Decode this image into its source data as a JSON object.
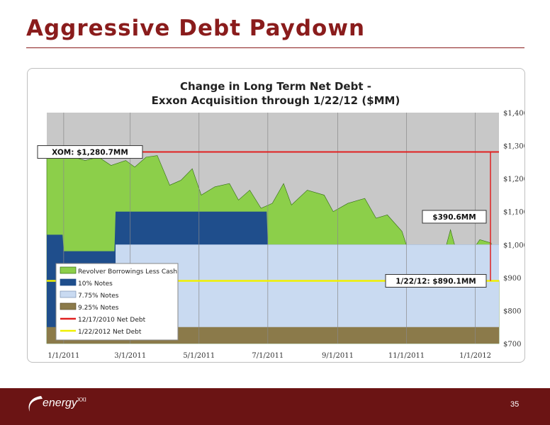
{
  "slide": {
    "title": "Aggressive Debt Paydown",
    "page_number": "35",
    "logo_text": "energy",
    "logo_sup": "XXI"
  },
  "colors": {
    "title": "#8a1c1c",
    "footer": "#6b1414",
    "revolver": "#8ccf4a",
    "notes10": "#1f4e8c",
    "notes775": "#c9daf1",
    "notes925": "#8b7a4a",
    "net_debt_2010": "#e02020",
    "net_debt_2012": "#f0f000",
    "plot_bg": "#c8c8c8"
  },
  "chart_data": {
    "type": "area",
    "title": "Change in Long Term Net Debt -\nExxon Acquisition through 1/22/12 ($MM)",
    "title_lines": [
      "Change in Long Term Net Debt -",
      "Exxon Acquisition through 1/22/12 ($MM)"
    ],
    "x_ticks": [
      "1/1/2011",
      "3/1/2011",
      "5/1/2011",
      "7/1/2011",
      "9/1/2011",
      "11/1/2011",
      "1/1/2012"
    ],
    "xlim": [
      "2010-12-17",
      "2012-01-22"
    ],
    "ylim": [
      700,
      1400
    ],
    "y_ticks": [
      "$700",
      "$800",
      "$900",
      "$1,000",
      "$1,100",
      "$1,200",
      "$1,300",
      "$1,400"
    ],
    "legend": [
      "Revolver Borrowings Less Cash",
      "10% Notes",
      "7.75% Notes",
      "9.25% Notes",
      "12/17/2010 Net Debt",
      "1/22/2012 Net Debt"
    ],
    "series": [
      {
        "name": "9.25% Notes",
        "stack": [
          [
            "2010-12-17",
            750
          ],
          [
            "2012-01-22",
            750
          ]
        ]
      },
      {
        "name": "10% Notes",
        "stack": [
          [
            "2010-12-17",
            1030
          ],
          [
            "2010-12-31",
            1030
          ],
          [
            "2011-01-01",
            980
          ],
          [
            "2011-02-15",
            980
          ],
          [
            "2011-02-16",
            1100
          ],
          [
            "2011-06-30",
            1100
          ],
          [
            "2011-07-01",
            1000
          ],
          [
            "2012-01-22",
            1000
          ]
        ]
      },
      {
        "name": "7.75% Notes",
        "stack": [
          [
            "2010-12-17",
            1000
          ],
          [
            "2012-01-22",
            1000
          ]
        ]
      },
      {
        "name": "Revolver Borrowings Less Cash",
        "total": [
          [
            "2010-12-17",
            1281
          ],
          [
            "2011-01-05",
            1270
          ],
          [
            "2011-01-20",
            1255
          ],
          [
            "2011-02-01",
            1265
          ],
          [
            "2011-02-12",
            1240
          ],
          [
            "2011-02-25",
            1255
          ],
          [
            "2011-03-05",
            1235
          ],
          [
            "2011-03-15",
            1265
          ],
          [
            "2011-03-25",
            1270
          ],
          [
            "2011-04-05",
            1180
          ],
          [
            "2011-04-15",
            1195
          ],
          [
            "2011-04-25",
            1230
          ],
          [
            "2011-05-03",
            1150
          ],
          [
            "2011-05-15",
            1175
          ],
          [
            "2011-05-28",
            1185
          ],
          [
            "2011-06-05",
            1135
          ],
          [
            "2011-06-15",
            1165
          ],
          [
            "2011-06-25",
            1110
          ],
          [
            "2011-07-05",
            1125
          ],
          [
            "2011-07-15",
            1185
          ],
          [
            "2011-07-22",
            1120
          ],
          [
            "2011-08-05",
            1165
          ],
          [
            "2011-08-20",
            1150
          ],
          [
            "2011-08-28",
            1100
          ],
          [
            "2011-09-10",
            1125
          ],
          [
            "2011-09-25",
            1140
          ],
          [
            "2011-10-05",
            1080
          ],
          [
            "2011-10-15",
            1090
          ],
          [
            "2011-10-28",
            1040
          ],
          [
            "2011-11-05",
            955
          ],
          [
            "2011-11-15",
            990
          ],
          [
            "2011-11-25",
            995
          ],
          [
            "2011-12-01",
            930
          ],
          [
            "2011-12-10",
            1045
          ],
          [
            "2011-12-18",
            945
          ],
          [
            "2011-12-28",
            975
          ],
          [
            "2012-01-05",
            1015
          ],
          [
            "2012-01-15",
            1005
          ],
          [
            "2012-01-22",
            890.1
          ]
        ]
      }
    ],
    "reference_lines": [
      {
        "name": "12/17/2010 Net Debt",
        "value": 1280.7
      },
      {
        "name": "1/22/2012 Net Debt",
        "value": 890.1
      }
    ],
    "annotations": [
      {
        "text": "XOM: $1,280.7MM",
        "value": 1280.7
      },
      {
        "text": "$390.6MM",
        "value": 390.6
      },
      {
        "text": "1/22/12: $890.1MM",
        "value": 890.1
      }
    ]
  }
}
